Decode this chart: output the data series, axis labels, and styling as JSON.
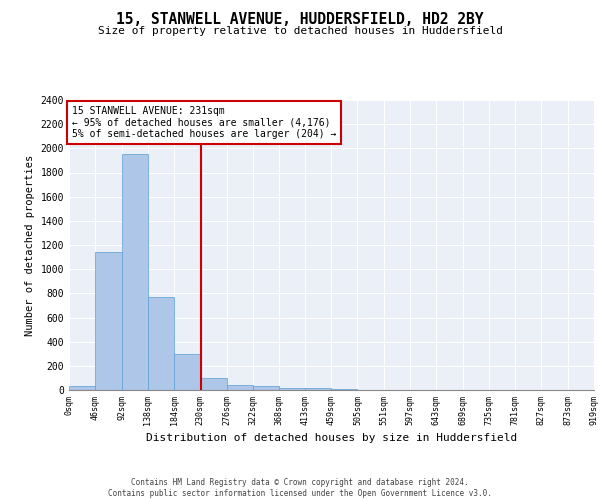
{
  "title1": "15, STANWELL AVENUE, HUDDERSFIELD, HD2 2BY",
  "title2": "Size of property relative to detached houses in Huddersfield",
  "xlabel": "Distribution of detached houses by size in Huddersfield",
  "ylabel": "Number of detached properties",
  "bins": [
    0,
    46,
    92,
    138,
    184,
    230,
    276,
    322,
    368,
    413,
    459,
    505,
    551,
    597,
    643,
    689,
    735,
    781,
    827,
    873,
    919
  ],
  "bin_labels": [
    "0sqm",
    "46sqm",
    "92sqm",
    "138sqm",
    "184sqm",
    "230sqm",
    "276sqm",
    "322sqm",
    "368sqm",
    "413sqm",
    "459sqm",
    "505sqm",
    "551sqm",
    "597sqm",
    "643sqm",
    "689sqm",
    "735sqm",
    "781sqm",
    "827sqm",
    "873sqm",
    "919sqm"
  ],
  "counts": [
    30,
    1140,
    1950,
    770,
    300,
    100,
    40,
    35,
    20,
    15,
    10,
    3,
    2,
    1,
    1,
    1,
    1,
    1,
    1,
    1
  ],
  "bar_color": "#aec6e8",
  "bar_edge_color": "#5a9fd4",
  "property_size": 231,
  "vline_color": "#cc0000",
  "annotation_line1": "15 STANWELL AVENUE: 231sqm",
  "annotation_line2": "← 95% of detached houses are smaller (4,176)",
  "annotation_line3": "5% of semi-detached houses are larger (204) →",
  "annotation_box_color": "#ffffff",
  "annotation_box_edge": "#cc0000",
  "ylim": [
    0,
    2400
  ],
  "yticks": [
    0,
    200,
    400,
    600,
    800,
    1000,
    1200,
    1400,
    1600,
    1800,
    2000,
    2200,
    2400
  ],
  "bg_color": "#eaeff8",
  "footer_line1": "Contains HM Land Registry data © Crown copyright and database right 2024.",
  "footer_line2": "Contains public sector information licensed under the Open Government Licence v3.0."
}
